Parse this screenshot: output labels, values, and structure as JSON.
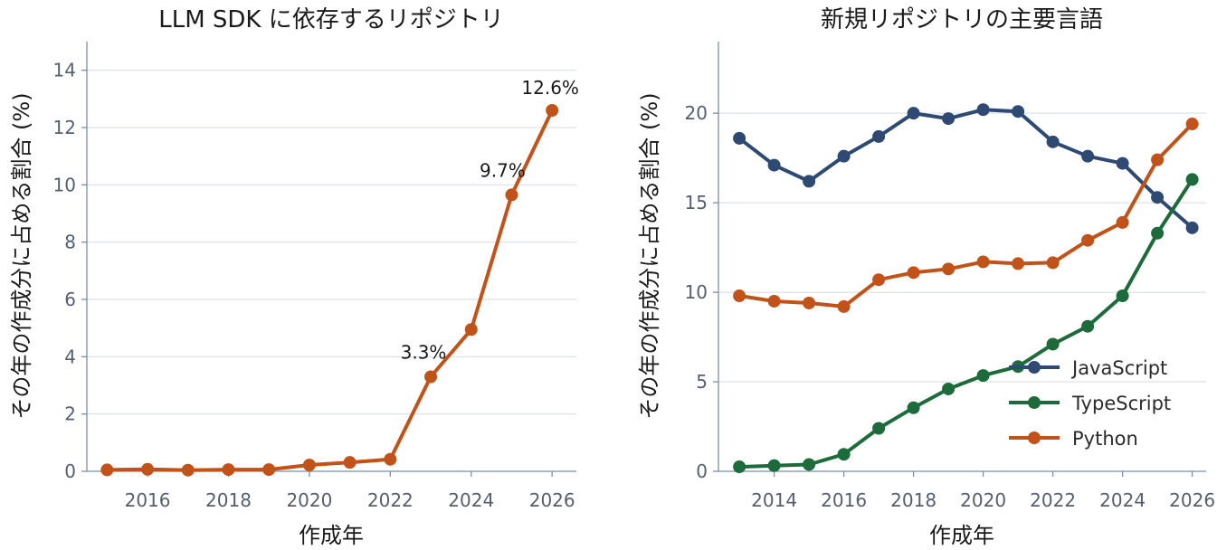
{
  "chart_data": [
    {
      "type": "line",
      "title": "LLM SDK に依存するリポジトリ",
      "xlabel": "作成年",
      "ylabel": "その年の作成分に占める割合 (%)",
      "xlim": [
        2014.5,
        2026.6
      ],
      "ylim": [
        0,
        15
      ],
      "xticks": [
        2016,
        2018,
        2020,
        2022,
        2024,
        2026
      ],
      "yticks": [
        0,
        2,
        4,
        6,
        8,
        10,
        12,
        14
      ],
      "grid": "horizontal",
      "series": [
        {
          "color": "#c1521a",
          "x": [
            2015,
            2016,
            2017,
            2018,
            2019,
            2020,
            2021,
            2022,
            2023,
            2024,
            2025,
            2026
          ],
          "y": [
            0.05,
            0.07,
            0.04,
            0.06,
            0.06,
            0.22,
            0.31,
            0.42,
            3.3,
            4.95,
            9.65,
            12.6
          ]
        }
      ],
      "annotations": [
        {
          "text": "3.3%",
          "x": 2023,
          "y": 3.3
        },
        {
          "text": "9.7%",
          "x": 2025,
          "y": 9.65
        },
        {
          "text": "12.6%",
          "x": 2026,
          "y": 12.6
        }
      ]
    },
    {
      "type": "line",
      "title": "新規リポジトリの主要言語",
      "xlabel": "作成年",
      "ylabel": "その年の作成分に占める割合 (%)",
      "xlim": [
        2012.4,
        2026.4
      ],
      "ylim": [
        0,
        24
      ],
      "xticks": [
        2014,
        2016,
        2018,
        2020,
        2022,
        2024,
        2026
      ],
      "yticks": [
        0,
        5,
        10,
        15,
        20
      ],
      "grid": "horizontal",
      "legend": "lower-right",
      "series": [
        {
          "name": "JavaScript",
          "color": "#2e4a72",
          "x": [
            2013,
            2014,
            2015,
            2016,
            2017,
            2018,
            2019,
            2020,
            2021,
            2022,
            2023,
            2024,
            2025,
            2026
          ],
          "y": [
            18.6,
            17.1,
            16.2,
            17.6,
            18.7,
            20.0,
            19.7,
            20.2,
            20.1,
            18.4,
            17.6,
            17.2,
            15.3,
            13.6
          ]
        },
        {
          "name": "TypeScript",
          "color": "#1d6b3a",
          "x": [
            2013,
            2014,
            2015,
            2016,
            2017,
            2018,
            2019,
            2020,
            2021,
            2022,
            2023,
            2024,
            2025,
            2026
          ],
          "y": [
            0.25,
            0.32,
            0.38,
            0.95,
            2.4,
            3.55,
            4.6,
            5.35,
            5.85,
            7.1,
            8.1,
            9.8,
            13.3,
            16.3
          ]
        },
        {
          "name": "Python",
          "color": "#c1521a",
          "x": [
            2013,
            2014,
            2015,
            2016,
            2017,
            2018,
            2019,
            2020,
            2021,
            2022,
            2023,
            2024,
            2025,
            2026
          ],
          "y": [
            9.8,
            9.5,
            9.4,
            9.2,
            10.7,
            11.1,
            11.3,
            11.7,
            11.6,
            11.65,
            12.9,
            13.9,
            17.4,
            19.4
          ]
        }
      ]
    }
  ]
}
